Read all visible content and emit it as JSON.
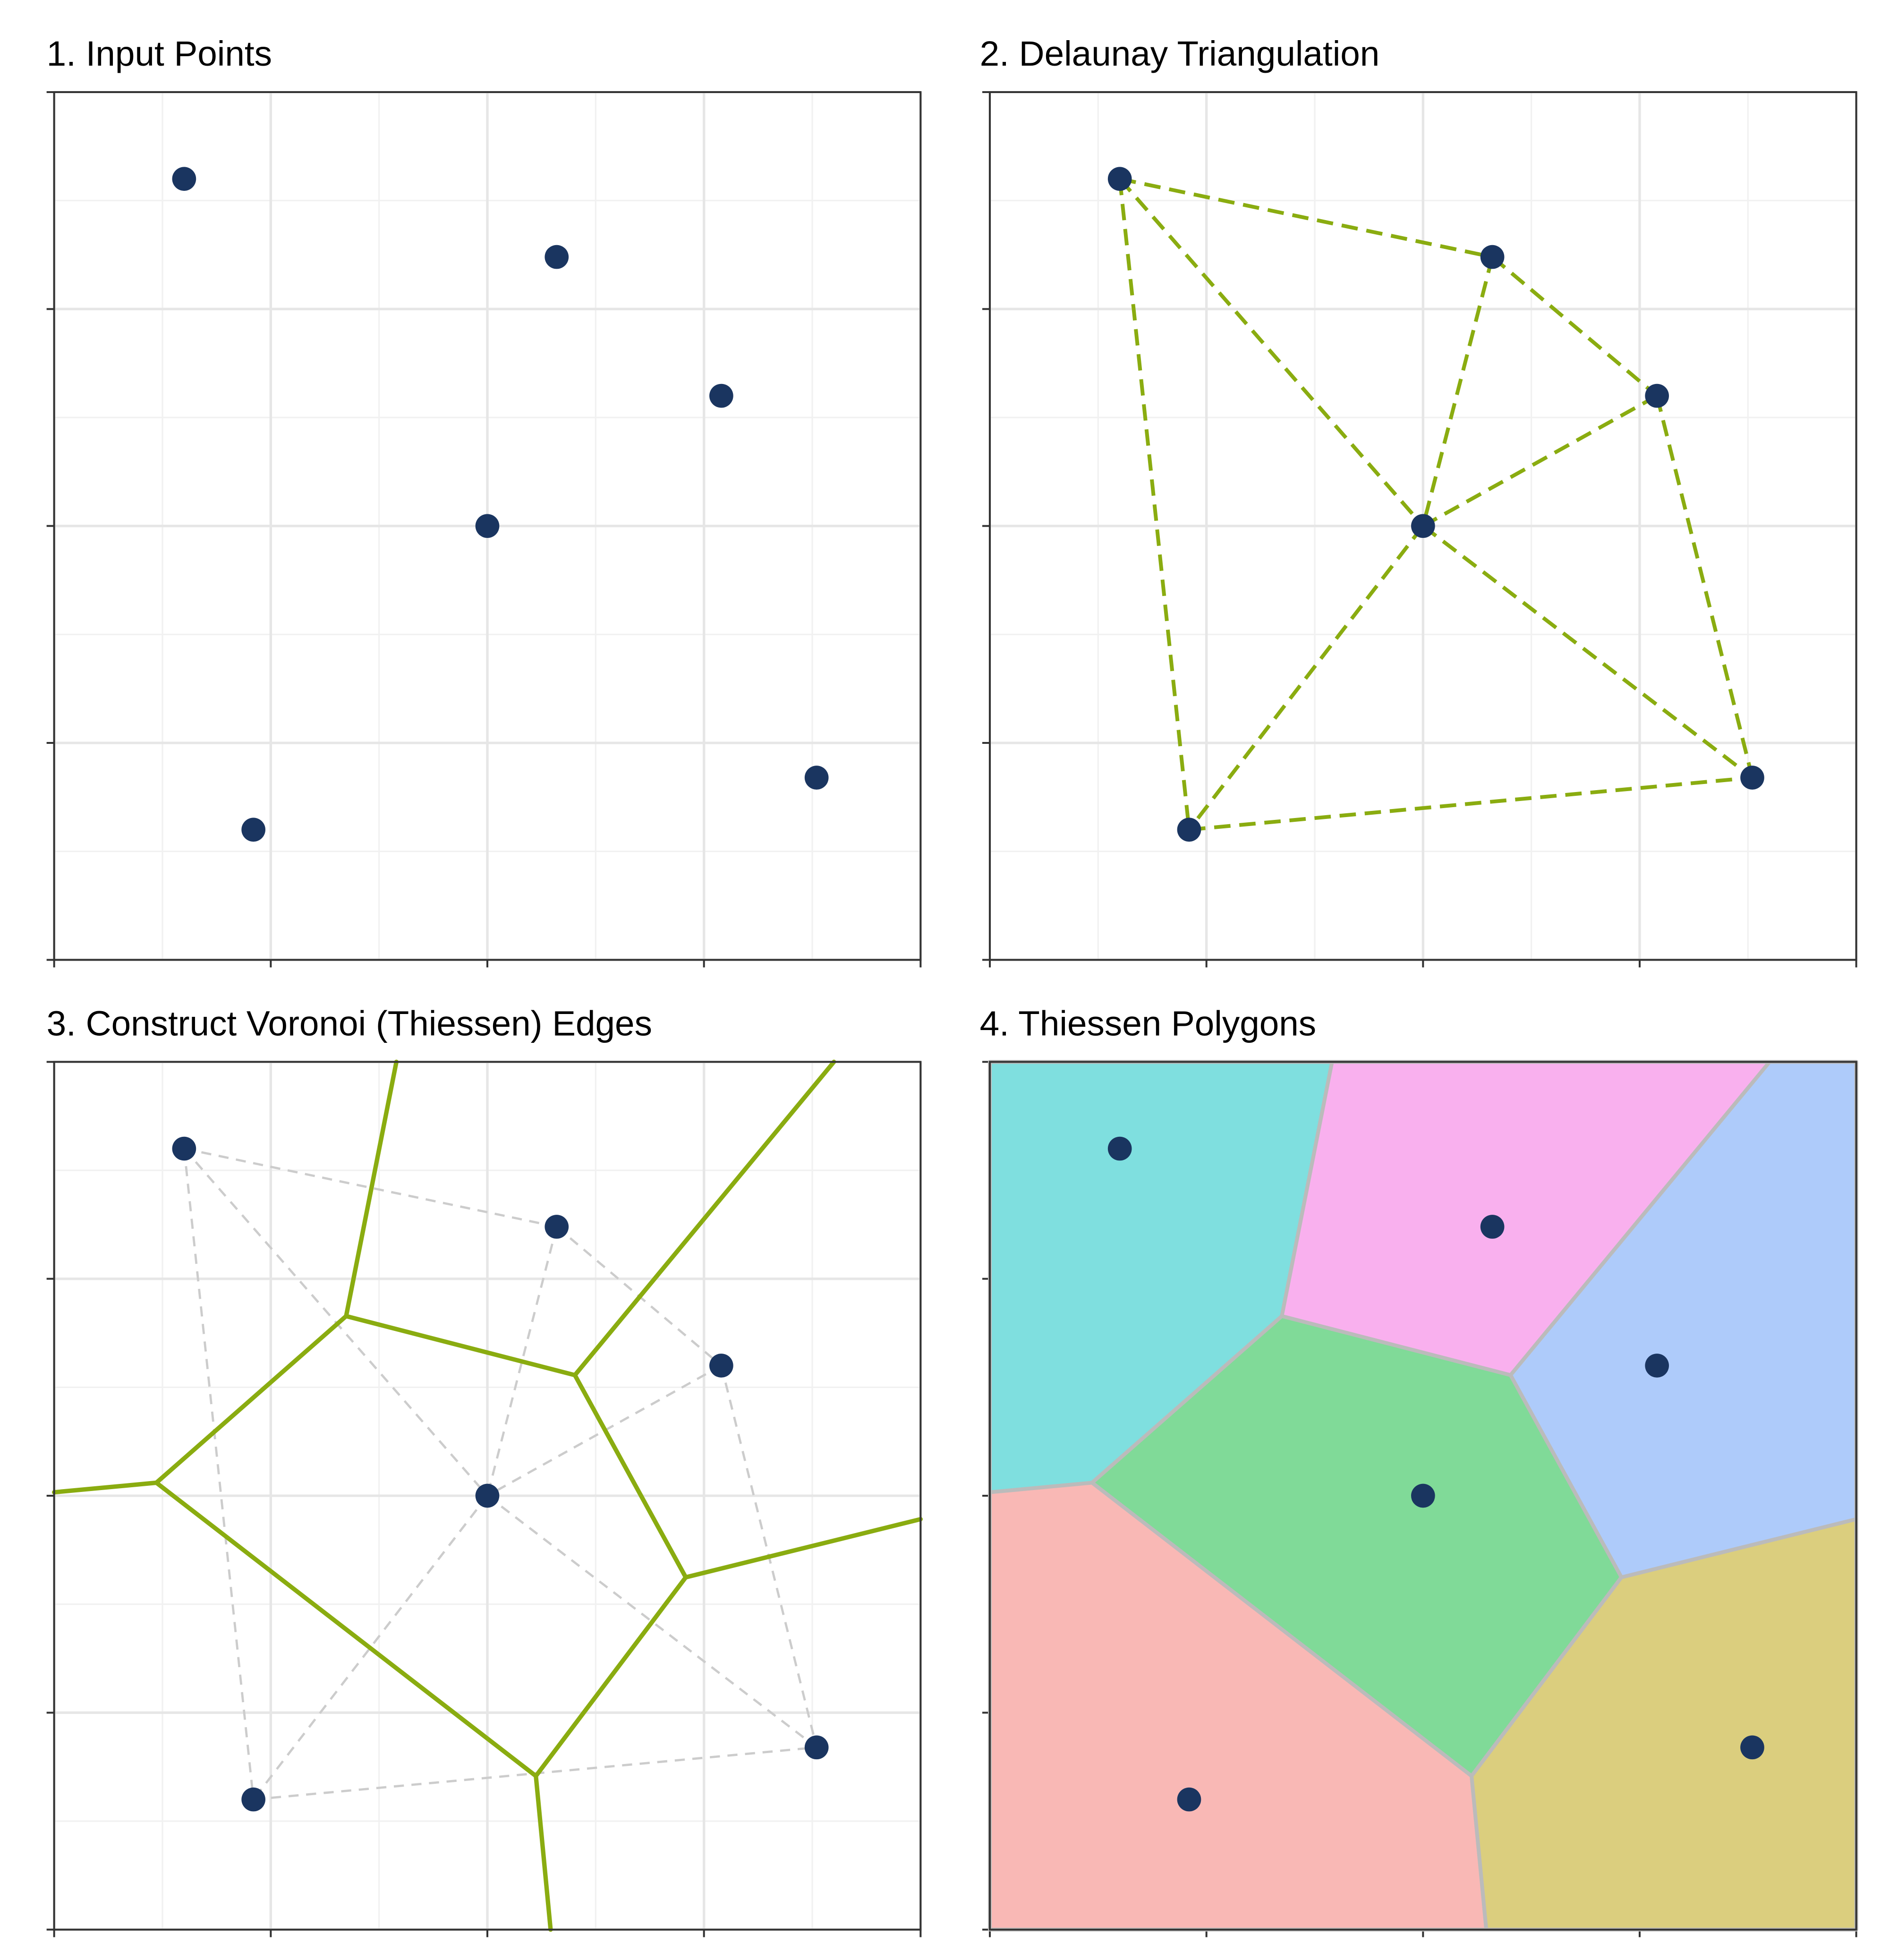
{
  "panels": [
    {
      "title": "1. Input Points",
      "mode": "points"
    },
    {
      "title": "2. Delaunay Triangulation",
      "mode": "delaunay"
    },
    {
      "title": "3. Construct Voronoi (Thiessen) Edges",
      "mode": "voronoi"
    },
    {
      "title": "4. Thiessen Polygons",
      "mode": "polygons"
    }
  ],
  "chart_data": {
    "type": "scatter",
    "xlim": [
      0,
      10
    ],
    "ylim": [
      0,
      10
    ],
    "ticks": [
      0,
      2.5,
      5,
      7.5,
      10
    ],
    "tick_labels_shown": false,
    "grid": true,
    "points": [
      {
        "id": "A",
        "x": 1.5,
        "y": 9.0
      },
      {
        "id": "B",
        "x": 5.8,
        "y": 8.1
      },
      {
        "id": "C",
        "x": 7.7,
        "y": 6.5
      },
      {
        "id": "E",
        "x": 5.0,
        "y": 5.0
      },
      {
        "id": "D",
        "x": 8.8,
        "y": 2.1
      },
      {
        "id": "F",
        "x": 2.3,
        "y": 1.5
      }
    ],
    "delaunay_edges": [
      [
        "A",
        "B"
      ],
      [
        "A",
        "E"
      ],
      [
        "A",
        "F"
      ],
      [
        "B",
        "C"
      ],
      [
        "B",
        "E"
      ],
      [
        "C",
        "E"
      ],
      [
        "C",
        "D"
      ],
      [
        "E",
        "D"
      ],
      [
        "E",
        "F"
      ],
      [
        "F",
        "D"
      ]
    ],
    "voronoi_edges": [
      [
        [
          3.37,
          7.07
        ],
        [
          3.95,
          10
        ]
      ],
      [
        [
          3.37,
          7.07
        ],
        [
          6.01,
          6.39
        ]
      ],
      [
        [
          3.37,
          7.07
        ],
        [
          1.18,
          5.15
        ]
      ],
      [
        [
          6.01,
          6.39
        ],
        [
          9.0,
          10
        ]
      ],
      [
        [
          6.01,
          6.39
        ],
        [
          7.29,
          4.06
        ]
      ],
      [
        [
          7.29,
          4.06
        ],
        [
          10,
          4.73
        ]
      ],
      [
        [
          7.29,
          4.06
        ],
        [
          5.56,
          1.77
        ]
      ],
      [
        [
          5.56,
          1.77
        ],
        [
          5.73,
          0
        ]
      ],
      [
        [
          5.56,
          1.77
        ],
        [
          1.18,
          5.15
        ]
      ],
      [
        [
          1.18,
          5.15
        ],
        [
          0,
          5.04
        ]
      ]
    ],
    "polygons": [
      {
        "site": "A",
        "color": "#7fdfdf",
        "vertices": [
          [
            0,
            10
          ],
          [
            3.95,
            10
          ],
          [
            3.37,
            7.07
          ],
          [
            1.18,
            5.15
          ],
          [
            0,
            5.04
          ]
        ]
      },
      {
        "site": "B",
        "color": "#f9b0ee",
        "vertices": [
          [
            3.95,
            10
          ],
          [
            9.0,
            10
          ],
          [
            6.01,
            6.39
          ],
          [
            3.37,
            7.07
          ]
        ]
      },
      {
        "site": "C",
        "color": "#aecbfa",
        "vertices": [
          [
            9.0,
            10
          ],
          [
            10,
            10
          ],
          [
            10,
            4.73
          ],
          [
            7.29,
            4.06
          ],
          [
            6.01,
            6.39
          ]
        ]
      },
      {
        "site": "E",
        "color": "#80da98",
        "vertices": [
          [
            3.37,
            7.07
          ],
          [
            6.01,
            6.39
          ],
          [
            7.29,
            4.06
          ],
          [
            5.56,
            1.77
          ],
          [
            1.18,
            5.15
          ]
        ]
      },
      {
        "site": "F",
        "color": "#f9b8b5",
        "vertices": [
          [
            0,
            5.04
          ],
          [
            1.18,
            5.15
          ],
          [
            5.56,
            1.77
          ],
          [
            5.73,
            0
          ],
          [
            0,
            0
          ]
        ]
      },
      {
        "site": "D",
        "color": "#dbce7e",
        "vertices": [
          [
            5.56,
            1.77
          ],
          [
            7.29,
            4.06
          ],
          [
            10,
            4.73
          ],
          [
            10,
            0
          ],
          [
            5.73,
            0
          ]
        ]
      }
    ]
  },
  "colors": {
    "point": "#1a3560",
    "edge": "#8aac10",
    "faint_edge": "#cccccc",
    "polygon_border": "#bbbbbb"
  }
}
